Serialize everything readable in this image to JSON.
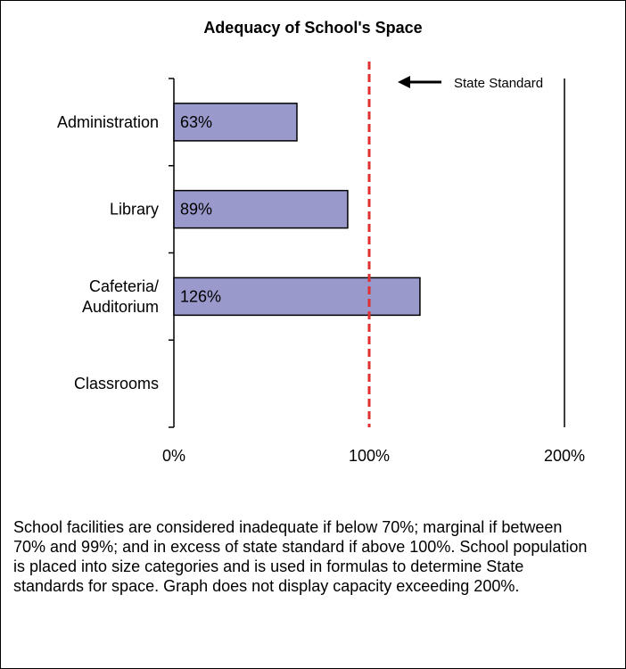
{
  "chart_data": {
    "type": "bar",
    "orientation": "horizontal",
    "title": "Adequacy of School's Space",
    "categories": [
      "Administration",
      "Library",
      "Cafeteria/ Auditorium",
      "Classrooms"
    ],
    "category_lines": [
      [
        "Administration"
      ],
      [
        "Library"
      ],
      [
        "Cafeteria/",
        "Auditorium"
      ],
      [
        "Classrooms"
      ]
    ],
    "values": [
      63,
      89,
      126,
      null
    ],
    "value_labels": [
      "63%",
      "89%",
      "126%",
      ""
    ],
    "xlim": [
      0,
      200
    ],
    "x_ticks": [
      0,
      100,
      200
    ],
    "x_tick_labels": [
      "0%",
      "100%",
      "200%"
    ],
    "reference_line": {
      "value": 100,
      "label": "State Standard",
      "style": "dashed",
      "color": "#e03030"
    },
    "bar_color": "#9999cc",
    "bar_edge_color": "#000000",
    "grid": false
  },
  "note": "School facilities are considered inadequate if below 70%; marginal if between 70% and 99%; and in excess of state standard if above 100%.  School population is placed into size categories and is used in formulas to determine State standards for space.  Graph does not display capacity exceeding 200%."
}
